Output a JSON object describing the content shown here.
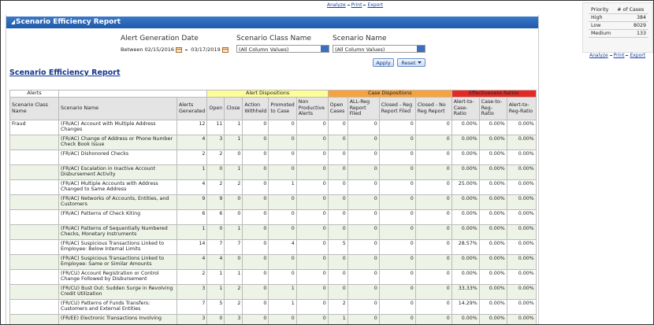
{
  "top_links": [
    "Analyze",
    "Print",
    "Export"
  ],
  "header": {
    "title": "Scenario Efficiency Report"
  },
  "filters": {
    "date": {
      "label": "Alert Generation Date",
      "prefix": "Between",
      "from": "02/15/2016",
      "to": "03/17/2019"
    },
    "class_name": {
      "label": "Scenario Class Name",
      "value": "(All Column Values)"
    },
    "scenario": {
      "label": "Scenario Name",
      "value": "(All Column Values)"
    }
  },
  "buttons": [
    "Apply",
    "Reset"
  ],
  "report_title": "Scenario Efficiency Report",
  "table": {
    "groups": [
      "Alerts",
      "Alert Dispositions",
      "Case Dispositions",
      "Effectiveness Ratios"
    ],
    "columns": [
      "Scenario Class Name",
      "Scenario Name",
      "Alerts Generated",
      "Open",
      "Close",
      "Action Withheld",
      "Promoted to Case",
      "Non Productive Alerts",
      "Open Cases",
      "ALL-Reg Report Filed",
      "Closed - Reg Report Filed",
      "Closed - No Reg Report",
      "Alert-to-Case-Ratio",
      "Case-to-Reg-Ratio",
      "Alert-to-Reg-Ratio"
    ],
    "class_name": "Fraud",
    "rows": [
      [
        "(FR/AC) Account with Multiple Address Changes",
        12,
        11,
        1,
        0,
        0,
        0,
        0,
        0,
        0,
        0,
        "0.00%",
        "0.00%",
        "0.00%"
      ],
      [
        "(FR/AC) Change of Address or Phone Number Check Book Issue",
        4,
        3,
        1,
        0,
        0,
        0,
        0,
        0,
        0,
        0,
        "0.00%",
        "0.00%",
        "0.00%"
      ],
      [
        "(FR/AC) Dishonored Checks",
        2,
        2,
        0,
        0,
        0,
        0,
        0,
        0,
        0,
        0,
        "0.00%",
        "0.00%",
        "0.00%"
      ],
      [
        "(FR/AC) Escalation in Inactive Account Disbursement Activity",
        1,
        0,
        1,
        0,
        0,
        0,
        0,
        0,
        0,
        0,
        "0.00%",
        "0.00%",
        "0.00%"
      ],
      [
        "(FR/AC) Multiple Accounts with Address Changed to Same Address",
        4,
        2,
        2,
        0,
        1,
        0,
        0,
        0,
        0,
        0,
        "25.00%",
        "0.00%",
        "0.00%"
      ],
      [
        "(FR/AC) Networks of Accounts, Entities, and Customers",
        9,
        9,
        0,
        0,
        0,
        0,
        0,
        0,
        0,
        0,
        "0.00%",
        "0.00%",
        "0.00%"
      ],
      [
        "(FR/AC) Patterns of Check Kiting",
        6,
        6,
        0,
        0,
        0,
        0,
        0,
        0,
        0,
        0,
        "0.00%",
        "0.00%",
        "0.00%"
      ],
      [
        "(FR/AC) Patterns of Sequentially Numbered Checks, Monetary Instruments",
        1,
        0,
        1,
        0,
        0,
        0,
        0,
        0,
        0,
        0,
        "0.00%",
        "0.00%",
        "0.00%"
      ],
      [
        "(FR/AC) Suspicious Transactions Linked to Employee: Below Internal Limits",
        14,
        7,
        7,
        0,
        4,
        0,
        5,
        0,
        0,
        0,
        "28.57%",
        "0.00%",
        "0.00%"
      ],
      [
        "(FR/AC) Suspicious Transactions Linked to Employee: Same or Similar Amounts",
        4,
        4,
        0,
        0,
        0,
        0,
        0,
        0,
        0,
        0,
        "0.00%",
        "0.00%",
        "0.00%"
      ],
      [
        "(FR/CU) Account Registration or Control Change Followed by Disbursement",
        2,
        1,
        1,
        0,
        0,
        0,
        0,
        0,
        0,
        0,
        "0.00%",
        "0.00%",
        "0.00%"
      ],
      [
        "(FR/CU) Bust Out: Sudden Surge in Revolving Credit Utilization",
        3,
        1,
        2,
        0,
        1,
        0,
        0,
        0,
        0,
        0,
        "33.33%",
        "0.00%",
        "0.00%"
      ],
      [
        "(FR/CU) Patterns of Funds Transfers: Customers and External Entities",
        7,
        5,
        2,
        0,
        1,
        0,
        2,
        0,
        0,
        0,
        "14.29%",
        "0.00%",
        "0.00%"
      ],
      [
        "(FR/EE) Electronic Transactions Involving",
        3,
        0,
        3,
        0,
        0,
        0,
        1,
        0,
        0,
        0,
        "0.00%",
        "0.00%",
        "0.00%"
      ]
    ]
  },
  "side": {
    "columns": [
      "Priority",
      "# of Cases"
    ],
    "rows": [
      [
        "High",
        384
      ],
      [
        "Low",
        8029
      ],
      [
        "Medium",
        133
      ]
    ],
    "links": [
      "Analyze",
      "Print",
      "Export"
    ]
  }
}
